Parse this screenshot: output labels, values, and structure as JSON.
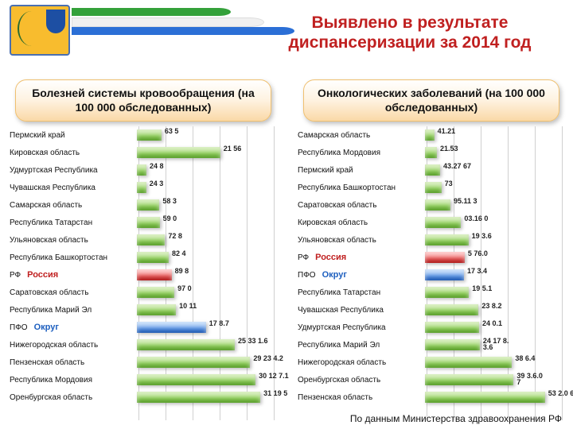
{
  "title": "Выявлено в результате диспансеризации за 2014 год",
  "footer": "По данным Министерства здравоохранения РФ",
  "extra": {
    "russia": "Россия",
    "okrug": "Округ"
  },
  "chartLeft": {
    "card": "Болезней системы кровообращения\n(на 100 000 обследованных)",
    "maxW": 170,
    "max": 3500,
    "gridAt": [
      0,
      700,
      1400,
      2100,
      2800,
      3500
    ],
    "rows": [
      {
        "l": "Пермский край",
        "v": 635,
        "t": "63 5"
      },
      {
        "l": "Кировская область",
        "v": 2156,
        "t": "21 56"
      },
      {
        "l": "Удмуртская Республика",
        "v": 248,
        "t": "24 8"
      },
      {
        "l": "Чувашская Республика",
        "v": 243,
        "t": "24 3"
      },
      {
        "l": "Самарская область",
        "v": 583,
        "t": "58 3"
      },
      {
        "l": "Республика Татарстан",
        "v": 590,
        "t": "59 0"
      },
      {
        "l": "Ульяновская область",
        "v": 728,
        "t": "72 8"
      },
      {
        "l": "Республика Башкортостан",
        "v": 824,
        "t": "82 4"
      },
      {
        "l": "РФ",
        "v": 898,
        "t": "89 8",
        "c": "red",
        "ex": "russia"
      },
      {
        "l": "Саратовская область",
        "v": 970,
        "t": "97 0"
      },
      {
        "l": "Республика Марий Эл",
        "v": 1011,
        "t": "10 11"
      },
      {
        "l": "ПФО",
        "v": 1787,
        "t": "17 8.7",
        "c": "blue",
        "ex": "okrug"
      },
      {
        "l": "Нижегородская область",
        "v": 2533,
        "t": "25 33 1.6"
      },
      {
        "l": "Пензенская область",
        "v": 2930,
        "t": "29 23 4.2"
      },
      {
        "l": "Республика Мордовия",
        "v": 3071,
        "t": "30 12 7.1"
      },
      {
        "l": "Оренбургская область",
        "v": 3195,
        "t": "31 19 5"
      }
    ]
  },
  "chartRight": {
    "card": "Онкологических заболеваний (на 100 000 обследованных)",
    "maxW": 170,
    "max": 600,
    "gridAt": [
      0,
      120,
      240,
      360,
      480,
      600
    ],
    "rows": [
      {
        "l": "Самарская область",
        "v": 41,
        "t": "41.21"
      },
      {
        "l": "Республика Мордовия",
        "v": 53,
        "t": "21.53"
      },
      {
        "l": "Пермский край",
        "v": 67,
        "t": "43.27 67"
      },
      {
        "l": "Республика Башкортостан",
        "v": 73,
        "t": "73"
      },
      {
        "l": "Саратовская область",
        "v": 113,
        "t": "95.11 3"
      },
      {
        "l": "Кировская область",
        "v": 160,
        "t": "03.16 0"
      },
      {
        "l": "Ульяновская область",
        "v": 193,
        "t": "19 3.6"
      },
      {
        "l": "РФ",
        "v": 176,
        "t": "5 76.0",
        "c": "red",
        "ex": "russia"
      },
      {
        "l": "ПФО",
        "v": 173,
        "t": "17 3.4",
        "c": "blue",
        "ex": "okrug"
      },
      {
        "l": "Республика Татарстан",
        "v": 195,
        "t": "19 5.1"
      },
      {
        "l": "Чувашская Республика",
        "v": 238,
        "t": "23 8.2"
      },
      {
        "l": "Удмуртская Республика",
        "v": 240,
        "t": "24 0.1"
      },
      {
        "l": "Республика Марий Эл",
        "v": 243,
        "t": "24 17 8.3.6"
      },
      {
        "l": "Нижегородская область",
        "v": 386,
        "t": "38 6.4"
      },
      {
        "l": "Оренбургская область",
        "v": 393,
        "t": "39 3.6.0 7"
      },
      {
        "l": "Пензенская область",
        "v": 532,
        "t": "53 2.0 6"
      }
    ]
  }
}
